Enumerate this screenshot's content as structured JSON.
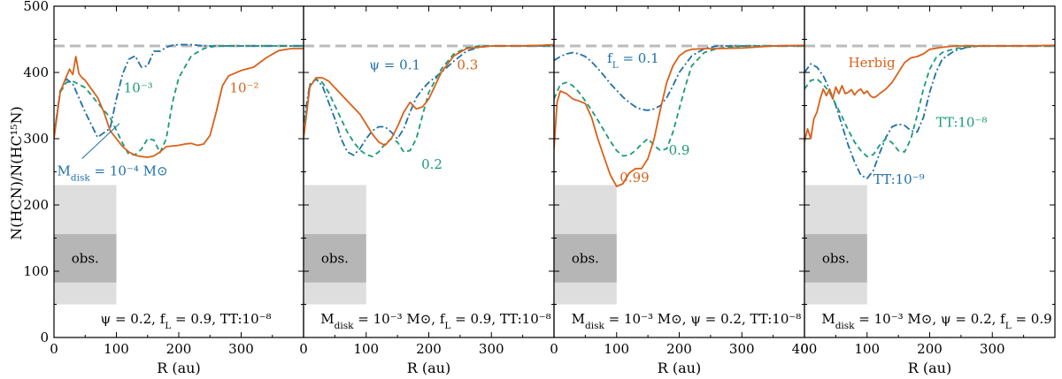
{
  "chart_data": {
    "type": "line",
    "ylabel": "N(HCN)/N(HC¹⁵N)",
    "xlabel": "R (au)",
    "ylim": [
      0,
      500
    ],
    "yticks": [
      0,
      100,
      200,
      300,
      400,
      500
    ],
    "reference_ratio": 440,
    "obs_band": {
      "label": "obs.",
      "x_range": [
        0,
        100
      ],
      "outer_range": [
        50,
        230
      ],
      "inner_range": [
        83,
        156
      ]
    },
    "colors": {
      "blue": "#1f6fa8",
      "green": "#1a9a78",
      "orange": "#d9611a",
      "reference": "#bbbbbb",
      "obs_outer": "#dedede",
      "obs_inner": "#b6b6b6"
    },
    "panels": [
      {
        "xlim": [
          0,
          400
        ],
        "xticks": [
          0,
          100,
          200,
          300
        ],
        "caption": "ψ = 0.2, f_L = 0.9, TT:10⁻⁸",
        "series": [
          {
            "name": "M_disk = 10⁻⁴ M⊙",
            "style": "dashdot",
            "color": "blue",
            "x": [
              0,
              10,
              20,
              30,
              50,
              70,
              90,
              100,
              110,
              120,
              130,
              140,
              150,
              160,
              170,
              180,
              190,
              200,
              220,
              240,
              260,
              300,
              350,
              400
            ],
            "y": [
              305,
              372,
              390,
              383,
              340,
              302,
              316,
              360,
              398,
              420,
              425,
              408,
              410,
              432,
              432,
              438,
              441,
              442,
              442,
              440,
              440,
              440,
              440,
              440
            ]
          },
          {
            "name": "10⁻³",
            "style": "dashed",
            "color": "green",
            "x": [
              0,
              10,
              20,
              30,
              50,
              70,
              90,
              110,
              120,
              130,
              140,
              150,
              160,
              170,
              180,
              190,
              200,
              220,
              240,
              260,
              300,
              350,
              400
            ],
            "y": [
              305,
              370,
              385,
              387,
              377,
              354,
              332,
              293,
              276,
              276,
              284,
              300,
              298,
              279,
              300,
              355,
              392,
              425,
              436,
              440,
              440,
              440,
              440
            ]
          },
          {
            "name": "10⁻²",
            "style": "solid",
            "color": "orange",
            "x": [
              0,
              10,
              20,
              25,
              30,
              35,
              40,
              45,
              50,
              60,
              70,
              80,
              90,
              100,
              110,
              120,
              130,
              140,
              150,
              160,
              170,
              180,
              200,
              210,
              220,
              230,
              240,
              250,
              260,
              270,
              280,
              300,
              320,
              340,
              360,
              380,
              400
            ],
            "y": [
              300,
              370,
              394,
              405,
              397,
              424,
              398,
              392,
              388,
              375,
              362,
              340,
              312,
              300,
              288,
              280,
              275,
              273,
              272,
              274,
              280,
              288,
              290,
              292,
              293,
              290,
              292,
              305,
              340,
              380,
              395,
              403,
              408,
              422,
              433,
              436,
              436
            ]
          }
        ],
        "annotations": [
          {
            "text": "M_disk = 10⁻⁴ M⊙",
            "color": "blue"
          },
          {
            "text": "10⁻³",
            "color": "green"
          },
          {
            "text": "10⁻²",
            "color": "orange"
          }
        ]
      },
      {
        "xlim": [
          0,
          400
        ],
        "xticks": [
          0,
          100,
          200,
          300
        ],
        "caption": "M_disk = 10⁻³ M⊙, f_L = 0.9, TT:10⁻⁸",
        "series": [
          {
            "name": "ψ = 0.1",
            "style": "dashdot",
            "color": "blue",
            "x": [
              0,
              10,
              20,
              30,
              40,
              50,
              60,
              70,
              80,
              90,
              100,
              110,
              120,
              130,
              140,
              150,
              160,
              170,
              180,
              190,
              200,
              220,
              240,
              260,
              280,
              300,
              340,
              380,
              400
            ],
            "y": [
              325,
              382,
              390,
              380,
              355,
              330,
              300,
              280,
              275,
              285,
              300,
              312,
              318,
              318,
              310,
              300,
              315,
              340,
              362,
              375,
              385,
              400,
              417,
              432,
              438,
              440,
              440,
              440,
              440
            ]
          },
          {
            "name": "0.2",
            "style": "dashed",
            "color": "green",
            "x": [
              0,
              10,
              20,
              30,
              40,
              50,
              60,
              70,
              80,
              90,
              100,
              110,
              120,
              130,
              140,
              150,
              160,
              170,
              180,
              190,
              200,
              220,
              240,
              260,
              280,
              300,
              340,
              380,
              400
            ],
            "y": [
              310,
              380,
              390,
              385,
              370,
              350,
              330,
              310,
              295,
              283,
              276,
              273,
              280,
              292,
              300,
              295,
              280,
              282,
              300,
              335,
              370,
              405,
              428,
              437,
              440,
              440,
              440,
              440,
              440
            ]
          },
          {
            "name": "0.3",
            "style": "solid",
            "color": "orange",
            "x": [
              0,
              10,
              20,
              30,
              40,
              50,
              60,
              70,
              80,
              90,
              100,
              110,
              120,
              130,
              140,
              150,
              160,
              170,
              180,
              190,
              200,
              210,
              220,
              240,
              260,
              280,
              300,
              340,
              380,
              400
            ],
            "y": [
              300,
              378,
              392,
              392,
              387,
              377,
              367,
              357,
              347,
              337,
              322,
              307,
              295,
              290,
              300,
              318,
              340,
              355,
              345,
              348,
              360,
              380,
              400,
              425,
              436,
              438,
              440,
              440,
              441,
              442
            ]
          }
        ],
        "annotations": [
          {
            "text": "ψ = 0.1",
            "color": "blue"
          },
          {
            "text": "0.2",
            "color": "green"
          },
          {
            "text": "0.3",
            "color": "orange"
          }
        ]
      },
      {
        "xlim": [
          0,
          400
        ],
        "xticks": [
          0,
          100,
          200,
          300,
          400
        ],
        "caption": "M_disk = 10⁻³ M⊙, ψ = 0.2, TT:10⁻⁸",
        "series": [
          {
            "name": "f_L = 0.1",
            "style": "dashdot",
            "color": "blue",
            "x": [
              0,
              10,
              20,
              30,
              40,
              50,
              60,
              70,
              80,
              90,
              100,
              110,
              120,
              130,
              140,
              150,
              160,
              170,
              180,
              190,
              200,
              220,
              240,
              260,
              280,
              300,
              350,
              400
            ],
            "y": [
              418,
              424,
              428,
              430,
              428,
              424,
              416,
              406,
              395,
              383,
              373,
              363,
              355,
              348,
              344,
              343,
              345,
              350,
              362,
              380,
              400,
              425,
              436,
              440,
              440,
              440,
              440,
              440
            ]
          },
          {
            "name": "0.9",
            "style": "dashed",
            "color": "green",
            "x": [
              0,
              10,
              20,
              30,
              40,
              50,
              60,
              70,
              80,
              90,
              100,
              110,
              120,
              130,
              140,
              150,
              160,
              170,
              180,
              190,
              200,
              210,
              220,
              240,
              260,
              280,
              300,
              350,
              400
            ],
            "y": [
              360,
              382,
              385,
              380,
              370,
              357,
              343,
              328,
              312,
              296,
              282,
              274,
              275,
              282,
              292,
              300,
              290,
              282,
              285,
              310,
              345,
              380,
              410,
              430,
              436,
              438,
              440,
              440,
              440
            ]
          },
          {
            "name": "0.99",
            "style": "solid",
            "color": "orange",
            "x": [
              0,
              5,
              10,
              20,
              30,
              40,
              50,
              60,
              70,
              80,
              90,
              100,
              110,
              120,
              130,
              140,
              150,
              160,
              170,
              180,
              190,
              200,
              210,
              220,
              240,
              260,
              300,
              350,
              400
            ],
            "y": [
              285,
              355,
              372,
              368,
              360,
              357,
              353,
              332,
              300,
              272,
              245,
              228,
              232,
              248,
              255,
              255,
              270,
              300,
              345,
              385,
              410,
              425,
              432,
              435,
              436,
              436,
              437,
              440,
              441
            ]
          }
        ],
        "annotations": [
          {
            "text": "f_L = 0.1",
            "color": "blue"
          },
          {
            "text": "0.9",
            "color": "green"
          },
          {
            "text": "0.99",
            "color": "orange"
          }
        ]
      },
      {
        "xlim": [
          0,
          400
        ],
        "xticks": [
          0,
          100,
          200,
          300
        ],
        "caption": "M_disk = 10⁻³ M⊙, ψ = 0.2, f_L = 0.9",
        "series": [
          {
            "name": "TT:10⁻⁹",
            "style": "dashdot",
            "color": "blue",
            "x": [
              0,
              10,
              20,
              30,
              40,
              50,
              60,
              70,
              80,
              90,
              100,
              110,
              120,
              130,
              140,
              150,
              160,
              170,
              180,
              190,
              200,
              210,
              220,
              240,
              260,
              280,
              300,
              350,
              400
            ],
            "y": [
              400,
              413,
              408,
              395,
              375,
              350,
              320,
              290,
              265,
              245,
              240,
              252,
              278,
              302,
              318,
              322,
              320,
              312,
              310,
              332,
              370,
              400,
              420,
              433,
              438,
              440,
              440,
              440,
              440
            ]
          },
          {
            "name": "TT:10⁻⁸",
            "style": "dashed",
            "color": "green",
            "x": [
              0,
              10,
              20,
              30,
              40,
              50,
              60,
              70,
              80,
              90,
              100,
              110,
              120,
              130,
              140,
              150,
              160,
              170,
              180,
              190,
              200,
              210,
              220,
              240,
              260,
              280,
              300,
              350,
              400
            ],
            "y": [
              375,
              388,
              390,
              382,
              370,
              352,
              333,
              313,
              295,
              282,
              273,
              276,
              290,
              300,
              294,
              282,
              280,
              300,
              335,
              375,
              405,
              422,
              430,
              436,
              438,
              440,
              440,
              440,
              440
            ]
          },
          {
            "name": "Herbig",
            "style": "solid",
            "color": "orange",
            "x": [
              0,
              5,
              10,
              15,
              20,
              25,
              30,
              35,
              40,
              45,
              50,
              55,
              60,
              65,
              70,
              75,
              80,
              85,
              90,
              95,
              100,
              105,
              110,
              115,
              120,
              130,
              140,
              150,
              160,
              170,
              180,
              190,
              200,
              220,
              240,
              260,
              300,
              350,
              400
            ],
            "y": [
              295,
              315,
              300,
              330,
              340,
              360,
              375,
              365,
              375,
              360,
              378,
              368,
              380,
              368,
              370,
              374,
              366,
              372,
              375,
              368,
              372,
              365,
              362,
              364,
              368,
              375,
              385,
              400,
              415,
              422,
              424,
              428,
              435,
              438,
              440,
              440,
              440,
              440,
              441
            ]
          }
        ],
        "annotations": [
          {
            "text": "TT:10⁻⁹",
            "color": "blue"
          },
          {
            "text": "TT:10⁻⁸",
            "color": "green"
          },
          {
            "text": "Herbig",
            "color": "orange"
          }
        ]
      }
    ]
  }
}
